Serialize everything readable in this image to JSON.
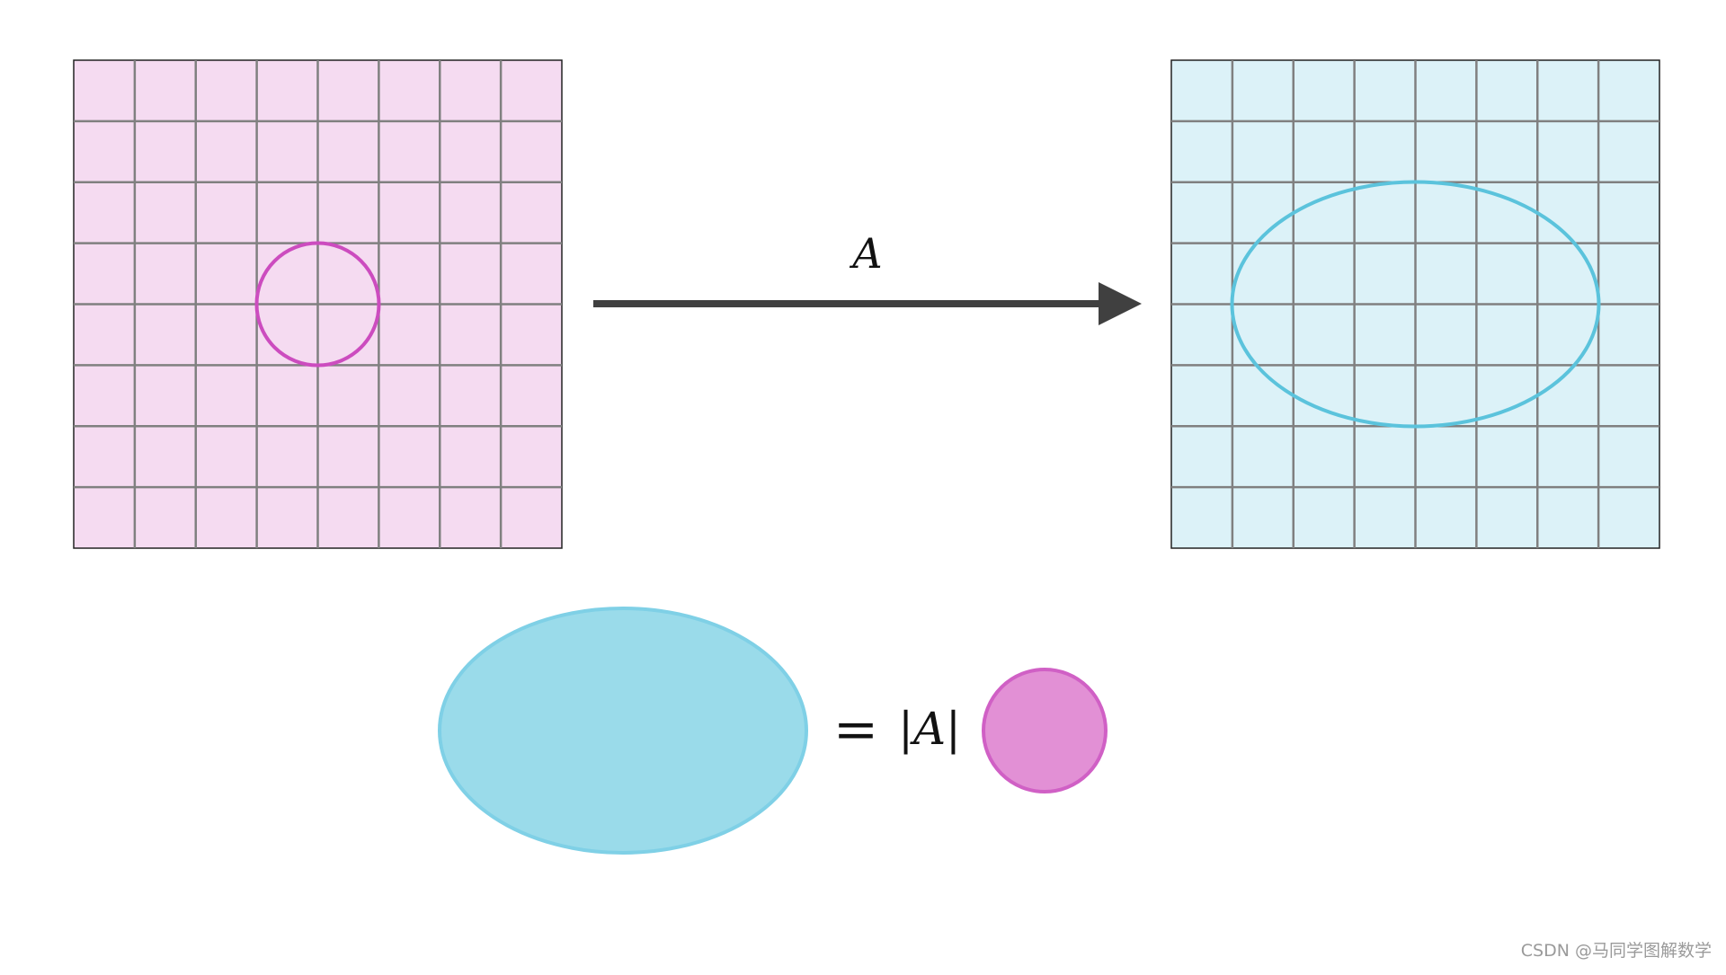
{
  "transform": {
    "label": "A",
    "arrow_color": "#404040"
  },
  "left_panel": {
    "fill": "#f5dbf1",
    "grid_color": "#808080",
    "grid_cells": 8,
    "shape": "circle",
    "shape_color": "#cc4cbf"
  },
  "right_panel": {
    "fill": "#dcf2f8",
    "grid_color": "#808080",
    "grid_cells": 8,
    "shape": "ellipse",
    "shape_color": "#5bc3dc"
  },
  "equation": {
    "equals": "=",
    "determinant": "|A|",
    "ellipse_fill": "#9adbea",
    "ellipse_stroke": "#7fd0e6",
    "circle_fill": "#e290d5",
    "circle_stroke": "#d060c5"
  },
  "watermark": "CSDN @马同学图解数学"
}
